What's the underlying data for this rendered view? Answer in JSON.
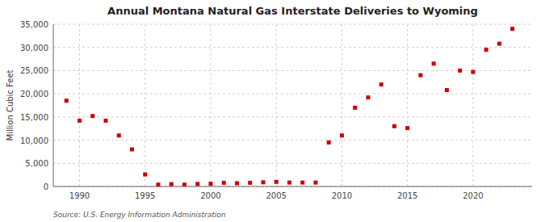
{
  "chart_data": {
    "type": "scatter",
    "title": "Annual Montana Natural Gas Interstate Deliveries to Wyoming",
    "ylabel": "Million Cubic Feet",
    "source": "Source: U.S. Energy Information Administration",
    "color": "#cc0000",
    "marker": "square",
    "grid": true,
    "xlim": [
      1988.0,
      2024.5
    ],
    "ylim": [
      0,
      35000
    ],
    "xticks": [
      1990,
      1995,
      2000,
      2005,
      2010,
      2015,
      2020
    ],
    "yticks": [
      0,
      {
        "value": 5000,
        "label": "5,000"
      },
      {
        "value": 10000,
        "label": "10,000"
      },
      {
        "value": 15000,
        "label": "15,000"
      },
      {
        "value": 20000,
        "label": "20,000"
      },
      {
        "value": 25000,
        "label": "25,000"
      },
      {
        "value": 30000,
        "label": "30,000"
      },
      {
        "value": 35000,
        "label": "35,000"
      }
    ],
    "x": [
      1989,
      1990,
      1991,
      1992,
      1993,
      1994,
      1995,
      1996,
      1997,
      1998,
      1999,
      2000,
      2001,
      2002,
      2003,
      2004,
      2005,
      2006,
      2007,
      2008,
      2009,
      2010,
      2011,
      2012,
      2013,
      2014,
      2015,
      2016,
      2017,
      2018,
      2019,
      2020,
      2021,
      2022,
      2023
    ],
    "values": [
      18500,
      14200,
      15200,
      14200,
      11000,
      8000,
      2600,
      400,
      500,
      400,
      550,
      600,
      800,
      700,
      800,
      900,
      1000,
      850,
      850,
      850,
      9500,
      11000,
      17000,
      19200,
      22000,
      13000,
      12600,
      24000,
      26500,
      20800,
      25000,
      24700,
      29500,
      30800,
      34000
    ]
  }
}
